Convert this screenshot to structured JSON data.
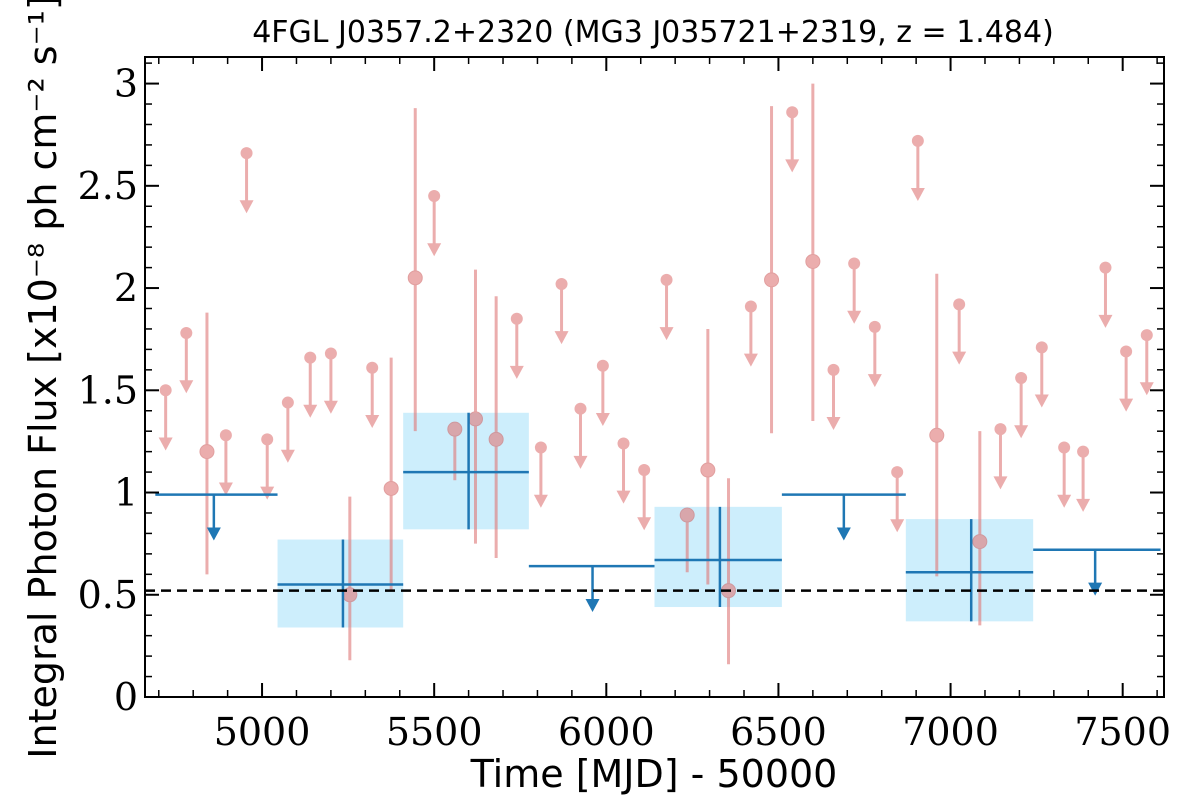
{
  "chart_data": {
    "type": "scatter",
    "title": "4FGL J0357.2+2320 (MG3 J035721+2319, z = 1.484)",
    "xlabel": "Time [MJD] - 50000",
    "ylabel": "Integral Photon Flux [x10⁻⁸ ph cm⁻² s⁻¹]",
    "xlim": [
      4660,
      7620
    ],
    "ylim": [
      0,
      3.13
    ],
    "x_ticks": [
      5000,
      5500,
      6000,
      6500,
      7000,
      7500
    ],
    "y_ticks": [
      0,
      0.5,
      1,
      1.5,
      2,
      2.5,
      3
    ],
    "y_tick_labels": [
      "0",
      "0.5",
      "1",
      "1.5",
      "2",
      "2.5",
      "3"
    ],
    "colors": {
      "short_bins": "#e07b7b",
      "long_bins": "#1f77b4",
      "long_box": "#cdeefc",
      "average": "#000000"
    },
    "average_flux": 0.52,
    "short_bin_detections": [
      {
        "x": 4840,
        "y": 1.2,
        "ylo": 0.6,
        "yhi": 1.88
      },
      {
        "x": 5255,
        "y": 0.5,
        "ylo": 0.18,
        "yhi": 0.98
      },
      {
        "x": 5375,
        "y": 1.02,
        "ylo": 0.52,
        "yhi": 1.66
      },
      {
        "x": 5445,
        "y": 2.05,
        "ylo": 1.3,
        "yhi": 2.88
      },
      {
        "x": 5560,
        "y": 1.31,
        "ylo": 1.06,
        "yhi": 1.32
      },
      {
        "x": 5620,
        "y": 1.36,
        "ylo": 0.75,
        "yhi": 2.09
      },
      {
        "x": 5680,
        "y": 1.26,
        "ylo": 0.68,
        "yhi": 1.96
      },
      {
        "x": 6235,
        "y": 0.89,
        "ylo": 0.61,
        "yhi": 0.9
      },
      {
        "x": 6295,
        "y": 1.11,
        "ylo": 0.55,
        "yhi": 1.8
      },
      {
        "x": 6355,
        "y": 0.52,
        "ylo": 0.16,
        "yhi": 1.07
      },
      {
        "x": 6480,
        "y": 2.04,
        "ylo": 1.29,
        "yhi": 2.89
      },
      {
        "x": 6600,
        "y": 2.13,
        "ylo": 1.35,
        "yhi": 3.0
      },
      {
        "x": 6960,
        "y": 1.28,
        "ylo": 0.59,
        "yhi": 2.07
      },
      {
        "x": 7085,
        "y": 0.76,
        "ylo": 0.35,
        "yhi": 1.3
      }
    ],
    "short_bin_upper_limits": [
      {
        "x": 4720,
        "y": 1.5
      },
      {
        "x": 4780,
        "y": 1.78
      },
      {
        "x": 4895,
        "y": 1.28
      },
      {
        "x": 4955,
        "y": 2.66
      },
      {
        "x": 5015,
        "y": 1.26
      },
      {
        "x": 5075,
        "y": 1.44
      },
      {
        "x": 5140,
        "y": 1.66
      },
      {
        "x": 5200,
        "y": 1.68
      },
      {
        "x": 5320,
        "y": 1.61
      },
      {
        "x": 5500,
        "y": 2.45
      },
      {
        "x": 5740,
        "y": 1.85
      },
      {
        "x": 5810,
        "y": 1.22
      },
      {
        "x": 5870,
        "y": 2.02
      },
      {
        "x": 5925,
        "y": 1.41
      },
      {
        "x": 5990,
        "y": 1.62
      },
      {
        "x": 6050,
        "y": 1.24
      },
      {
        "x": 6110,
        "y": 1.11
      },
      {
        "x": 6175,
        "y": 2.04
      },
      {
        "x": 6420,
        "y": 1.91
      },
      {
        "x": 6540,
        "y": 2.86
      },
      {
        "x": 6660,
        "y": 1.6
      },
      {
        "x": 6720,
        "y": 2.12
      },
      {
        "x": 6780,
        "y": 1.81
      },
      {
        "x": 6845,
        "y": 1.1
      },
      {
        "x": 6905,
        "y": 2.72
      },
      {
        "x": 7025,
        "y": 1.92
      },
      {
        "x": 7145,
        "y": 1.31
      },
      {
        "x": 7205,
        "y": 1.56
      },
      {
        "x": 7265,
        "y": 1.71
      },
      {
        "x": 7330,
        "y": 1.22
      },
      {
        "x": 7385,
        "y": 1.2
      },
      {
        "x": 7450,
        "y": 2.1
      },
      {
        "x": 7510,
        "y": 1.69
      },
      {
        "x": 7570,
        "y": 1.77
      }
    ],
    "long_bin_detections": [
      {
        "x": 5235,
        "xlo": 5045,
        "xhi": 5410,
        "y": 0.55,
        "ylo": 0.34,
        "yhi": 0.77
      },
      {
        "x": 5600,
        "xlo": 5410,
        "xhi": 5775,
        "y": 1.1,
        "ylo": 0.82,
        "yhi": 1.39
      },
      {
        "x": 6330,
        "xlo": 6140,
        "xhi": 6510,
        "y": 0.67,
        "ylo": 0.44,
        "yhi": 0.93
      },
      {
        "x": 7060,
        "xlo": 6870,
        "xhi": 7240,
        "y": 0.61,
        "ylo": 0.37,
        "yhi": 0.87
      }
    ],
    "long_bin_upper_limits": [
      {
        "x": 4860,
        "xlo": 4690,
        "xhi": 5045,
        "y": 0.99
      },
      {
        "x": 5960,
        "xlo": 5775,
        "xhi": 6140,
        "y": 0.64
      },
      {
        "x": 6690,
        "xlo": 6510,
        "xhi": 6870,
        "y": 0.99
      },
      {
        "x": 7420,
        "xlo": 7240,
        "xhi": 7610,
        "y": 0.72
      }
    ]
  }
}
